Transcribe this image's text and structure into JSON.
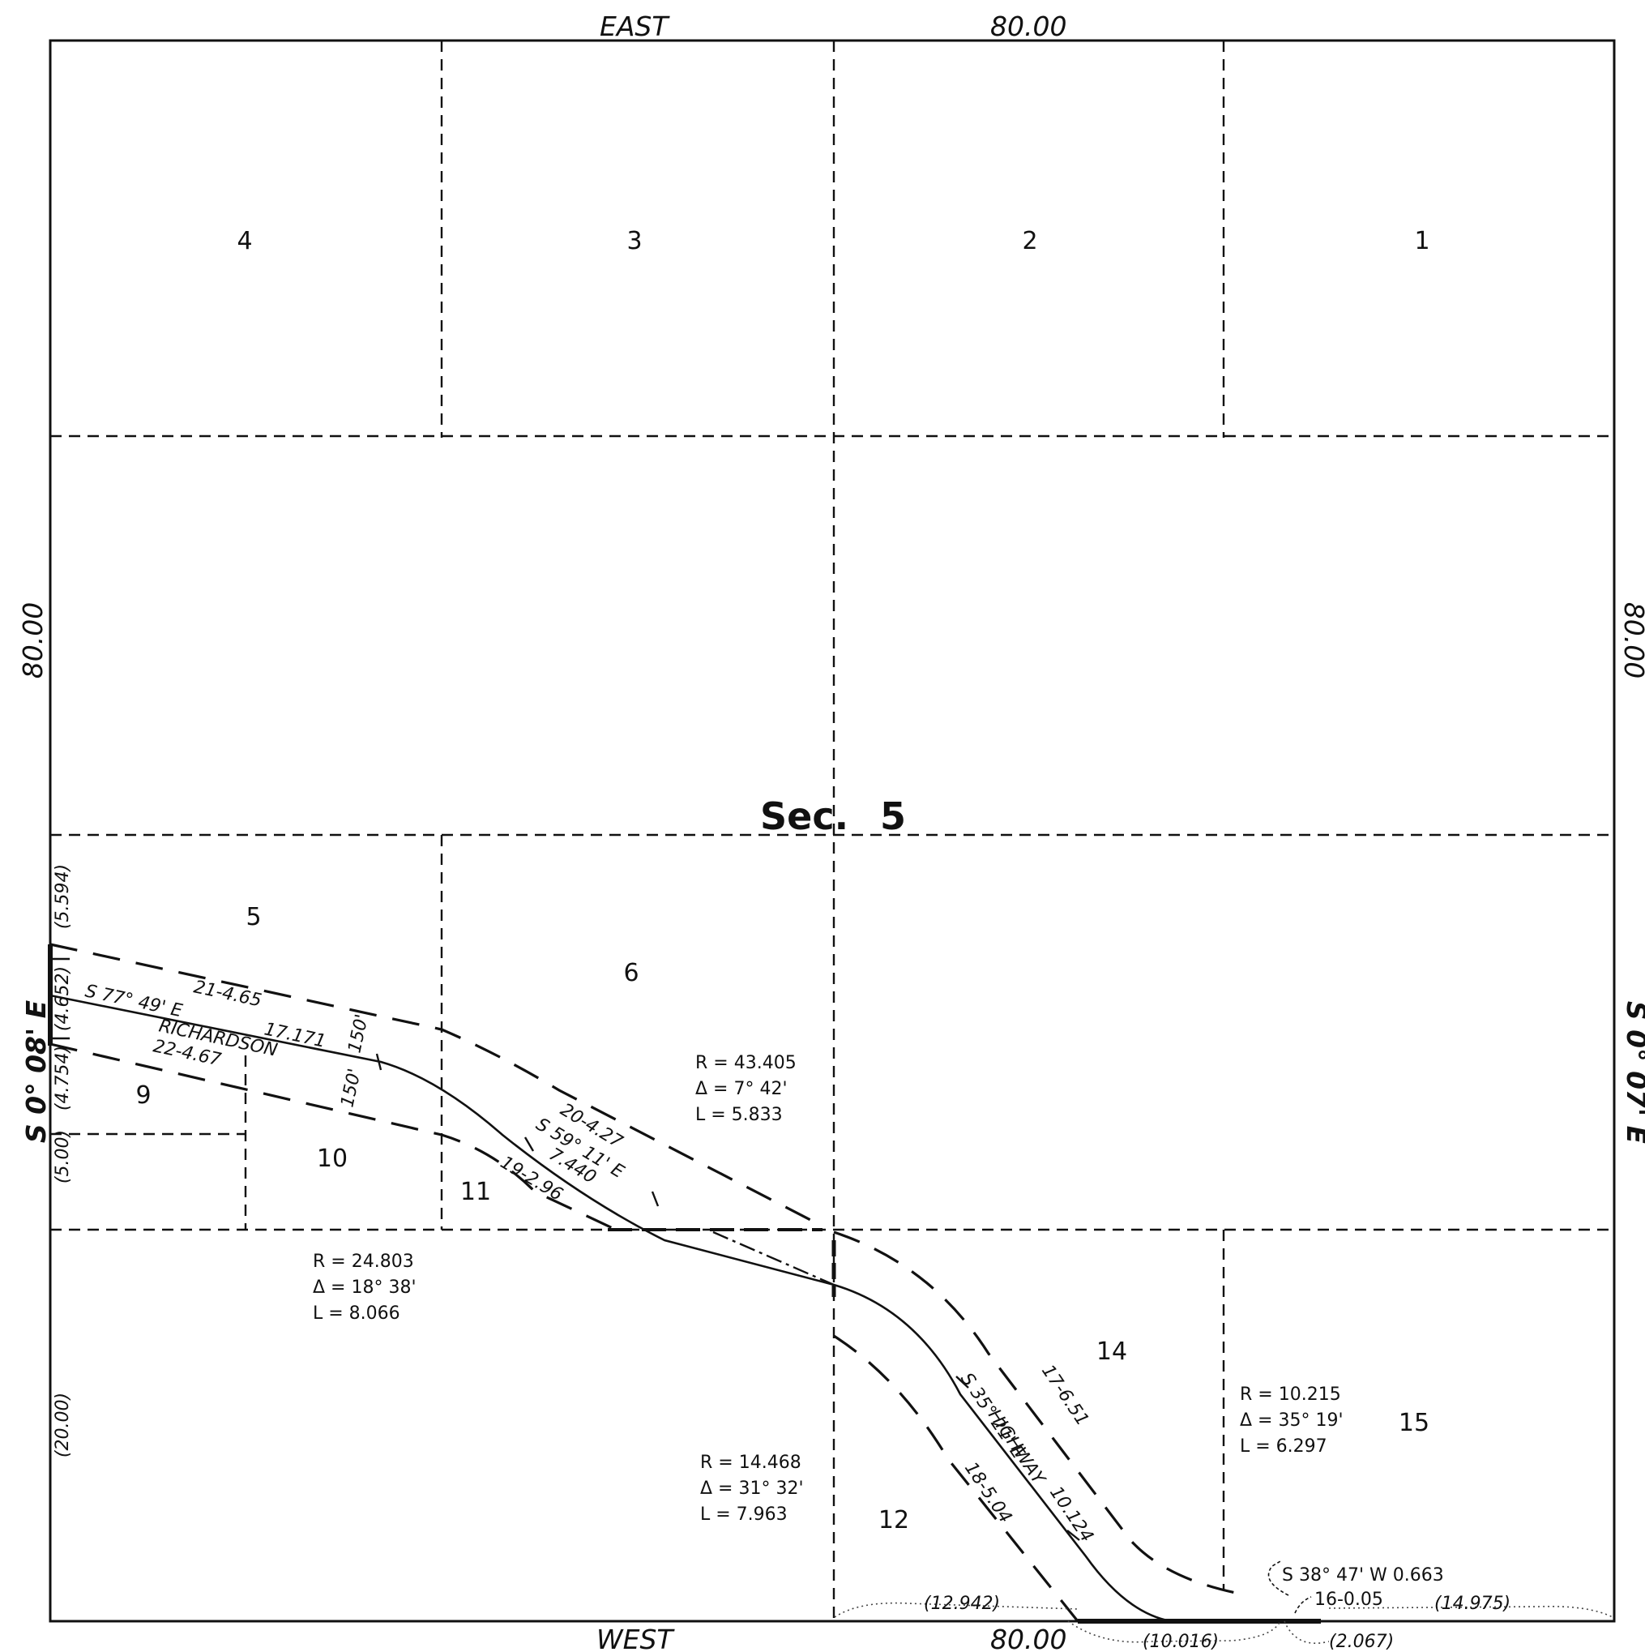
{
  "section": {
    "label": "Sec.",
    "number": "5"
  },
  "boundary": {
    "north": "EAST",
    "north_dist": "80.00",
    "south": "WEST",
    "south_dist": "80.00",
    "west_dist": "80.00",
    "west_bearing": "S 0° 08' E",
    "east_dist": "80.00",
    "east_bearing": "S 0° 07' E"
  },
  "lots": [
    "1",
    "2",
    "3",
    "4",
    "5",
    "6",
    "9",
    "10",
    "11",
    "12",
    "14",
    "15"
  ],
  "west_side_dims": [
    "(5.594)",
    "(4.652)",
    "(4.754)",
    "(5.00)",
    "(20.00)"
  ],
  "roads": {
    "richardson": {
      "name": "RICHARDSON",
      "bearing": "S 77° 49' E",
      "centerline_dist": "17.171",
      "north_line": "21-4.65",
      "south_line": "22-4.67",
      "width_north": "150'",
      "width_south": "150'"
    },
    "segment2": {
      "bearing": "S 59° 11' E",
      "dist": "7.440",
      "north_line": "20-4.27",
      "south_line": "19-2.96"
    },
    "highway": {
      "name": "HIGHWAY",
      "bearing": "S 35° 21' E",
      "dist": "10.124",
      "north_line": "17-6.51",
      "south_line": "18-5.04"
    }
  },
  "curves": [
    {
      "r": "R = 43.405",
      "delta": "Δ = 7° 42'",
      "l": "L = 5.833"
    },
    {
      "r": "R = 24.803",
      "delta": "Δ = 18° 38'",
      "l": "L = 8.066"
    },
    {
      "r": "R = 14.468",
      "delta": "Δ = 31° 32'",
      "l": "L = 7.963"
    },
    {
      "r": "R = 10.215",
      "delta": "Δ = 35° 19'",
      "l": "L = 6.297"
    }
  ],
  "south_line_note": {
    "bearing": "S 38° 47' W 0.663",
    "line": "16-0.05"
  },
  "south_dims": [
    "(12.942)",
    "(10.016)",
    "(2.067)",
    "(14.975)"
  ]
}
